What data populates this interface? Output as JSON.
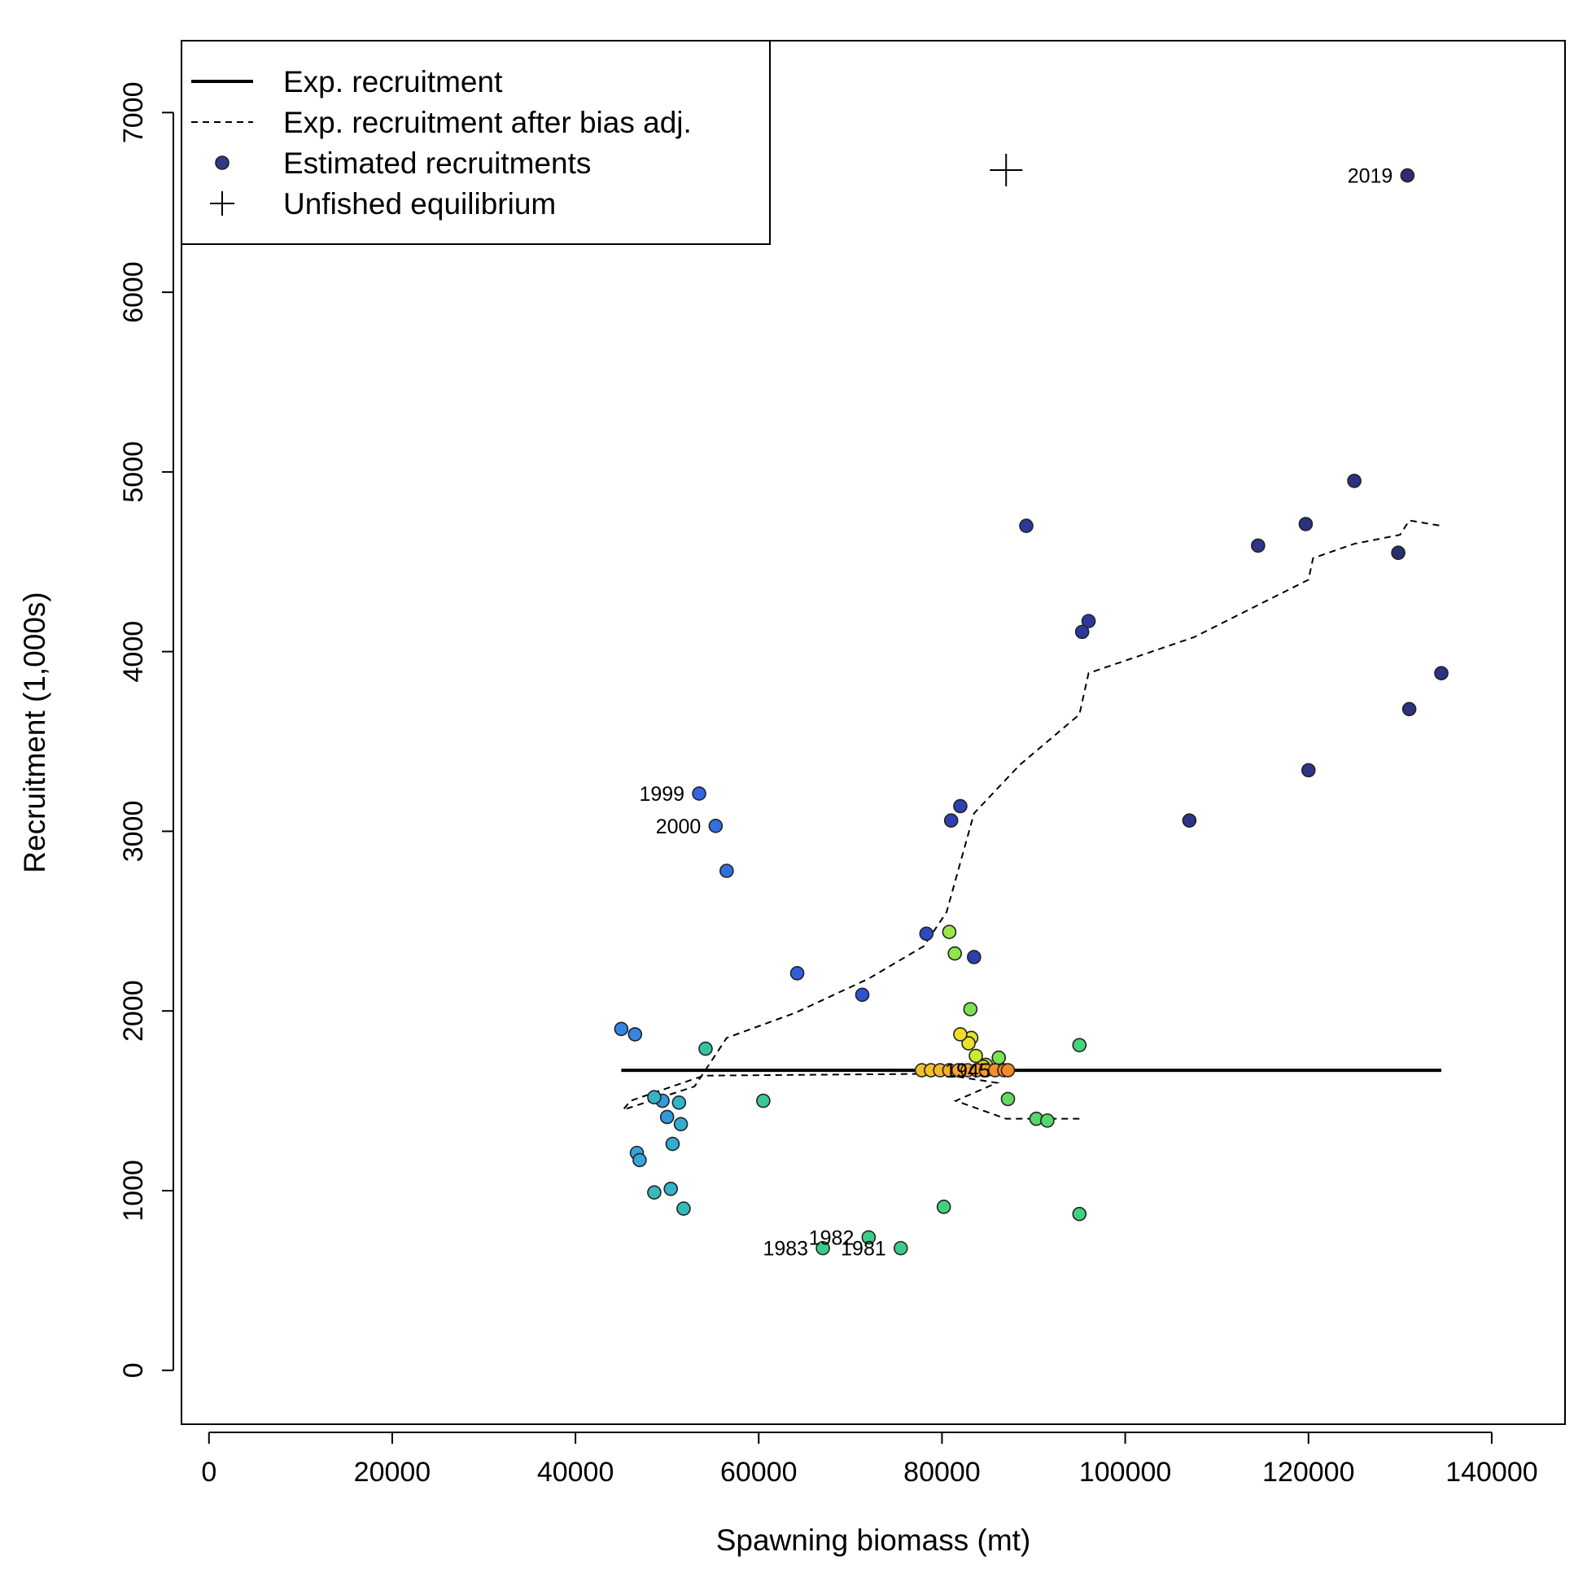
{
  "chart_data": {
    "type": "scatter",
    "title": "",
    "xlabel": "Spawning biomass (mt)",
    "ylabel": "Recruitment (1,000s)",
    "xlim": [
      -3000,
      148000
    ],
    "ylim": [
      -300,
      7400
    ],
    "x_ticks": [
      0,
      20000,
      40000,
      60000,
      80000,
      100000,
      120000,
      140000
    ],
    "x_tick_labels": [
      "0",
      "20000",
      "40000",
      "60000",
      "80000",
      "100000",
      "120000",
      "140000"
    ],
    "y_ticks": [
      0,
      1000,
      2000,
      3000,
      4000,
      5000,
      6000,
      7000
    ],
    "y_tick_labels": [
      "0",
      "1000",
      "2000",
      "3000",
      "4000",
      "5000",
      "6000",
      "7000"
    ],
    "grid": false,
    "legend_position": "top-left",
    "legend": [
      {
        "label": "Exp. recruitment",
        "symbol": "solid-line"
      },
      {
        "label": "Exp. recruitment after bias adj.",
        "symbol": "dashed-line"
      },
      {
        "label": "Estimated recruitments",
        "symbol": "filled-circle",
        "color": "#2e3a8c"
      },
      {
        "label": "Unfished equilibrium",
        "symbol": "plus"
      }
    ],
    "exp_recruitment": {
      "x": [
        45000,
        134500
      ],
      "y": [
        1670,
        1670
      ]
    },
    "exp_recruitment_bias_adj": {
      "x": [
        95000,
        87000,
        81500,
        86000,
        81000,
        78000,
        54000,
        46000,
        45200,
        53000,
        56500,
        64000,
        72000,
        78000,
        80500,
        83500,
        88500,
        95000,
        96000,
        107500,
        120000,
        120500,
        125000,
        130000,
        131000,
        134500
      ],
      "y": [
        1400,
        1400,
        1500,
        1600,
        1640,
        1650,
        1640,
        1500,
        1450,
        1580,
        1850,
        1990,
        2180,
        2360,
        2550,
        3100,
        3370,
        3650,
        3880,
        4080,
        4400,
        4520,
        4600,
        4650,
        4730,
        4700
      ]
    },
    "unfished_equilibrium": {
      "x": 87000,
      "y": 6680
    },
    "points": [
      {
        "x": 130800,
        "y": 6650,
        "color": "#2a2f6e",
        "label": "2019"
      },
      {
        "x": 125000,
        "y": 4950,
        "color": "#2b3282"
      },
      {
        "x": 119700,
        "y": 4710,
        "color": "#2b3282"
      },
      {
        "x": 114500,
        "y": 4590,
        "color": "#2c3589"
      },
      {
        "x": 129800,
        "y": 4550,
        "color": "#2a2f6e"
      },
      {
        "x": 134500,
        "y": 3880,
        "color": "#2b3282"
      },
      {
        "x": 131000,
        "y": 3680,
        "color": "#2b3282"
      },
      {
        "x": 120000,
        "y": 3340,
        "color": "#2c3589"
      },
      {
        "x": 107000,
        "y": 3060,
        "color": "#2c3589"
      },
      {
        "x": 89200,
        "y": 4700,
        "color": "#2d399a"
      },
      {
        "x": 96000,
        "y": 4170,
        "color": "#2d399a"
      },
      {
        "x": 95300,
        "y": 4110,
        "color": "#2d399a"
      },
      {
        "x": 82000,
        "y": 3140,
        "color": "#2e40ad"
      },
      {
        "x": 81000,
        "y": 3060,
        "color": "#2e40ad"
      },
      {
        "x": 83500,
        "y": 2300,
        "color": "#2e40ad"
      },
      {
        "x": 78300,
        "y": 2430,
        "color": "#2e48c2"
      },
      {
        "x": 71300,
        "y": 2090,
        "color": "#2e52d0"
      },
      {
        "x": 64200,
        "y": 2210,
        "color": "#2f5fd9"
      },
      {
        "x": 53500,
        "y": 3210,
        "color": "#3166e0",
        "label": "1999"
      },
      {
        "x": 55300,
        "y": 3030,
        "color": "#3270e2",
        "label": "2000"
      },
      {
        "x": 56500,
        "y": 2780,
        "color": "#3270e2"
      },
      {
        "x": 45000,
        "y": 1900,
        "color": "#3487e0"
      },
      {
        "x": 46500,
        "y": 1870,
        "color": "#3487e0"
      },
      {
        "x": 49500,
        "y": 1500,
        "color": "#3398dd"
      },
      {
        "x": 50000,
        "y": 1410,
        "color": "#3398dd"
      },
      {
        "x": 46700,
        "y": 1210,
        "color": "#35a5da"
      },
      {
        "x": 47000,
        "y": 1170,
        "color": "#35a5da"
      },
      {
        "x": 50600,
        "y": 1260,
        "color": "#33acd0"
      },
      {
        "x": 51500,
        "y": 1370,
        "color": "#33acd0"
      },
      {
        "x": 48600,
        "y": 1520,
        "color": "#33b4c6"
      },
      {
        "x": 51300,
        "y": 1490,
        "color": "#33b4c6"
      },
      {
        "x": 50400,
        "y": 1010,
        "color": "#33b4c6"
      },
      {
        "x": 48600,
        "y": 990,
        "color": "#35bcb8"
      },
      {
        "x": 51800,
        "y": 900,
        "color": "#35bcb8"
      },
      {
        "x": 54200,
        "y": 1790,
        "color": "#36c3a4"
      },
      {
        "x": 60500,
        "y": 1500,
        "color": "#3ac898"
      },
      {
        "x": 67000,
        "y": 680,
        "color": "#3ccc8a",
        "label": "1983"
      },
      {
        "x": 72000,
        "y": 740,
        "color": "#3ccc8a",
        "label": "1982"
      },
      {
        "x": 75500,
        "y": 680,
        "color": "#3ccc8a",
        "label": "1981"
      },
      {
        "x": 80200,
        "y": 910,
        "color": "#3fd080"
      },
      {
        "x": 95000,
        "y": 870,
        "color": "#3fd080"
      },
      {
        "x": 95000,
        "y": 1810,
        "color": "#45d479"
      },
      {
        "x": 90300,
        "y": 1400,
        "color": "#55d86a"
      },
      {
        "x": 91500,
        "y": 1390,
        "color": "#55d86a"
      },
      {
        "x": 87200,
        "y": 1510,
        "color": "#60dc60"
      },
      {
        "x": 86200,
        "y": 1740,
        "color": "#7ce24e"
      },
      {
        "x": 83100,
        "y": 2010,
        "color": "#7ce24e"
      },
      {
        "x": 81400,
        "y": 2320,
        "color": "#8ee64a"
      },
      {
        "x": 80800,
        "y": 2440,
        "color": "#9be844"
      },
      {
        "x": 84800,
        "y": 1700,
        "color": "#b8ea3c"
      },
      {
        "x": 83700,
        "y": 1750,
        "color": "#c8ea32"
      },
      {
        "x": 83200,
        "y": 1850,
        "color": "#dfe42c"
      },
      {
        "x": 82900,
        "y": 1820,
        "color": "#e8e02a"
      },
      {
        "x": 82000,
        "y": 1870,
        "color": "#f0dc28"
      },
      {
        "x": 84500,
        "y": 1690,
        "color": "#f0d028"
      },
      {
        "x": 77800,
        "y": 1670,
        "color": "#f2c02a"
      },
      {
        "x": 78800,
        "y": 1670,
        "color": "#f2c02a"
      },
      {
        "x": 79800,
        "y": 1670,
        "color": "#f2b82a"
      },
      {
        "x": 80800,
        "y": 1670,
        "color": "#f2b02a"
      },
      {
        "x": 81800,
        "y": 1670,
        "color": "#f2a82a"
      },
      {
        "x": 82800,
        "y": 1670,
        "color": "#f2a02a"
      },
      {
        "x": 83800,
        "y": 1670,
        "color": "#f2a02a"
      },
      {
        "x": 84800,
        "y": 1670,
        "color": "#f29a2a"
      },
      {
        "x": 85800,
        "y": 1670,
        "color": "#f2922a"
      },
      {
        "x": 86800,
        "y": 1670,
        "color": "#f08a2a"
      },
      {
        "x": 87200,
        "y": 1670,
        "color": "#f08a2a"
      }
    ],
    "overlap_labels": [
      {
        "text": "1945",
        "x": 82800,
        "y": 1670
      }
    ]
  }
}
